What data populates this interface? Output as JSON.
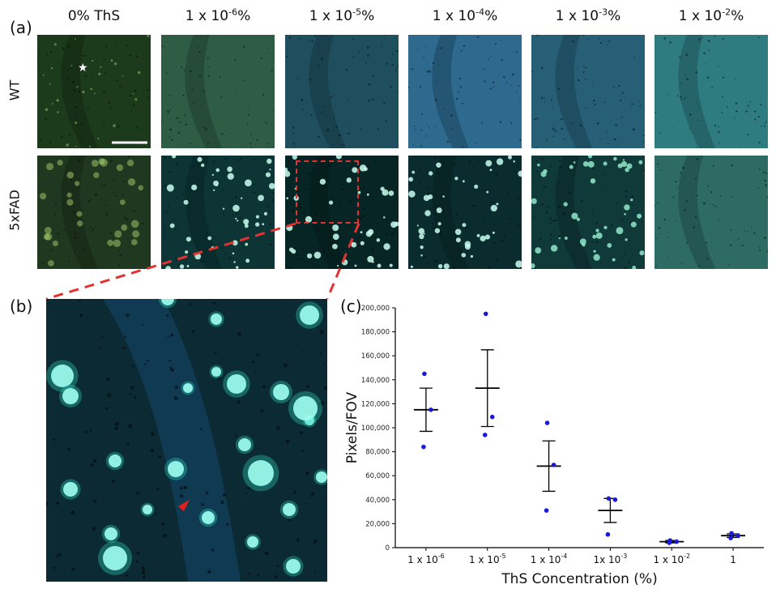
{
  "panels": {
    "a": "(a)",
    "b": "(b)",
    "c": "(c)"
  },
  "columns": [
    {
      "base": "0% ThS",
      "exp": "",
      "suffix": ""
    },
    {
      "base": "1 x 10",
      "exp": "-6",
      "suffix": "%"
    },
    {
      "base": "1 x 10",
      "exp": "-5",
      "suffix": "%"
    },
    {
      "base": "1 x 10",
      "exp": "-4",
      "suffix": "%"
    },
    {
      "base": "1 x 10",
      "exp": "-3",
      "suffix": "%"
    },
    {
      "base": "1 x 10",
      "exp": "-2",
      "suffix": "%"
    }
  ],
  "rows": [
    "WT",
    "5xFAD"
  ],
  "tile_colors": {
    "wt": [
      "#1c3a1c",
      "#2f5c45",
      "#1f4f5e",
      "#2d6a8d",
      "#275f77",
      "#2e7b80"
    ],
    "fad": [
      "#20381f",
      "#0d3535",
      "#072525",
      "#0a2c2e",
      "#10393a",
      "#2d6b63"
    ],
    "highlight": "#e23232",
    "marker": "#e02020"
  },
  "chart_data": {
    "type": "scatter",
    "xlabel": "ThS Concentration (%)",
    "ylabel": "Pixels/FOV",
    "ylim": [
      0,
      200000
    ],
    "yticks": [
      "0",
      "20,000",
      "40,000",
      "60,000",
      "80,000",
      "100,000",
      "120,000",
      "140,000",
      "160,000",
      "180,000",
      "200,000"
    ],
    "categories": [
      {
        "base": "1 x 10",
        "exp": "-6"
      },
      {
        "base": "1 x 10",
        "exp": "-5"
      },
      {
        "base": "1 x 10",
        "exp": "-4"
      },
      {
        "base": "1x 10",
        "exp": "-3"
      },
      {
        "base": "1 x 10",
        "exp": "-2"
      },
      {
        "base": "1",
        "exp": ""
      }
    ],
    "points": [
      [
        145000,
        115000,
        84000
      ],
      [
        195000,
        109000,
        94000
      ],
      [
        104000,
        69000,
        31000
      ],
      [
        41000,
        40000,
        11000
      ],
      [
        6000,
        5000,
        4000
      ],
      [
        12000,
        10000,
        8000
      ]
    ],
    "means": [
      115000,
      133000,
      68000,
      31000,
      5000,
      10000
    ],
    "errors": [
      18000,
      32000,
      21000,
      10000,
      1000,
      1500
    ],
    "point_color": "#1a1adb",
    "line_color": "#000000"
  }
}
